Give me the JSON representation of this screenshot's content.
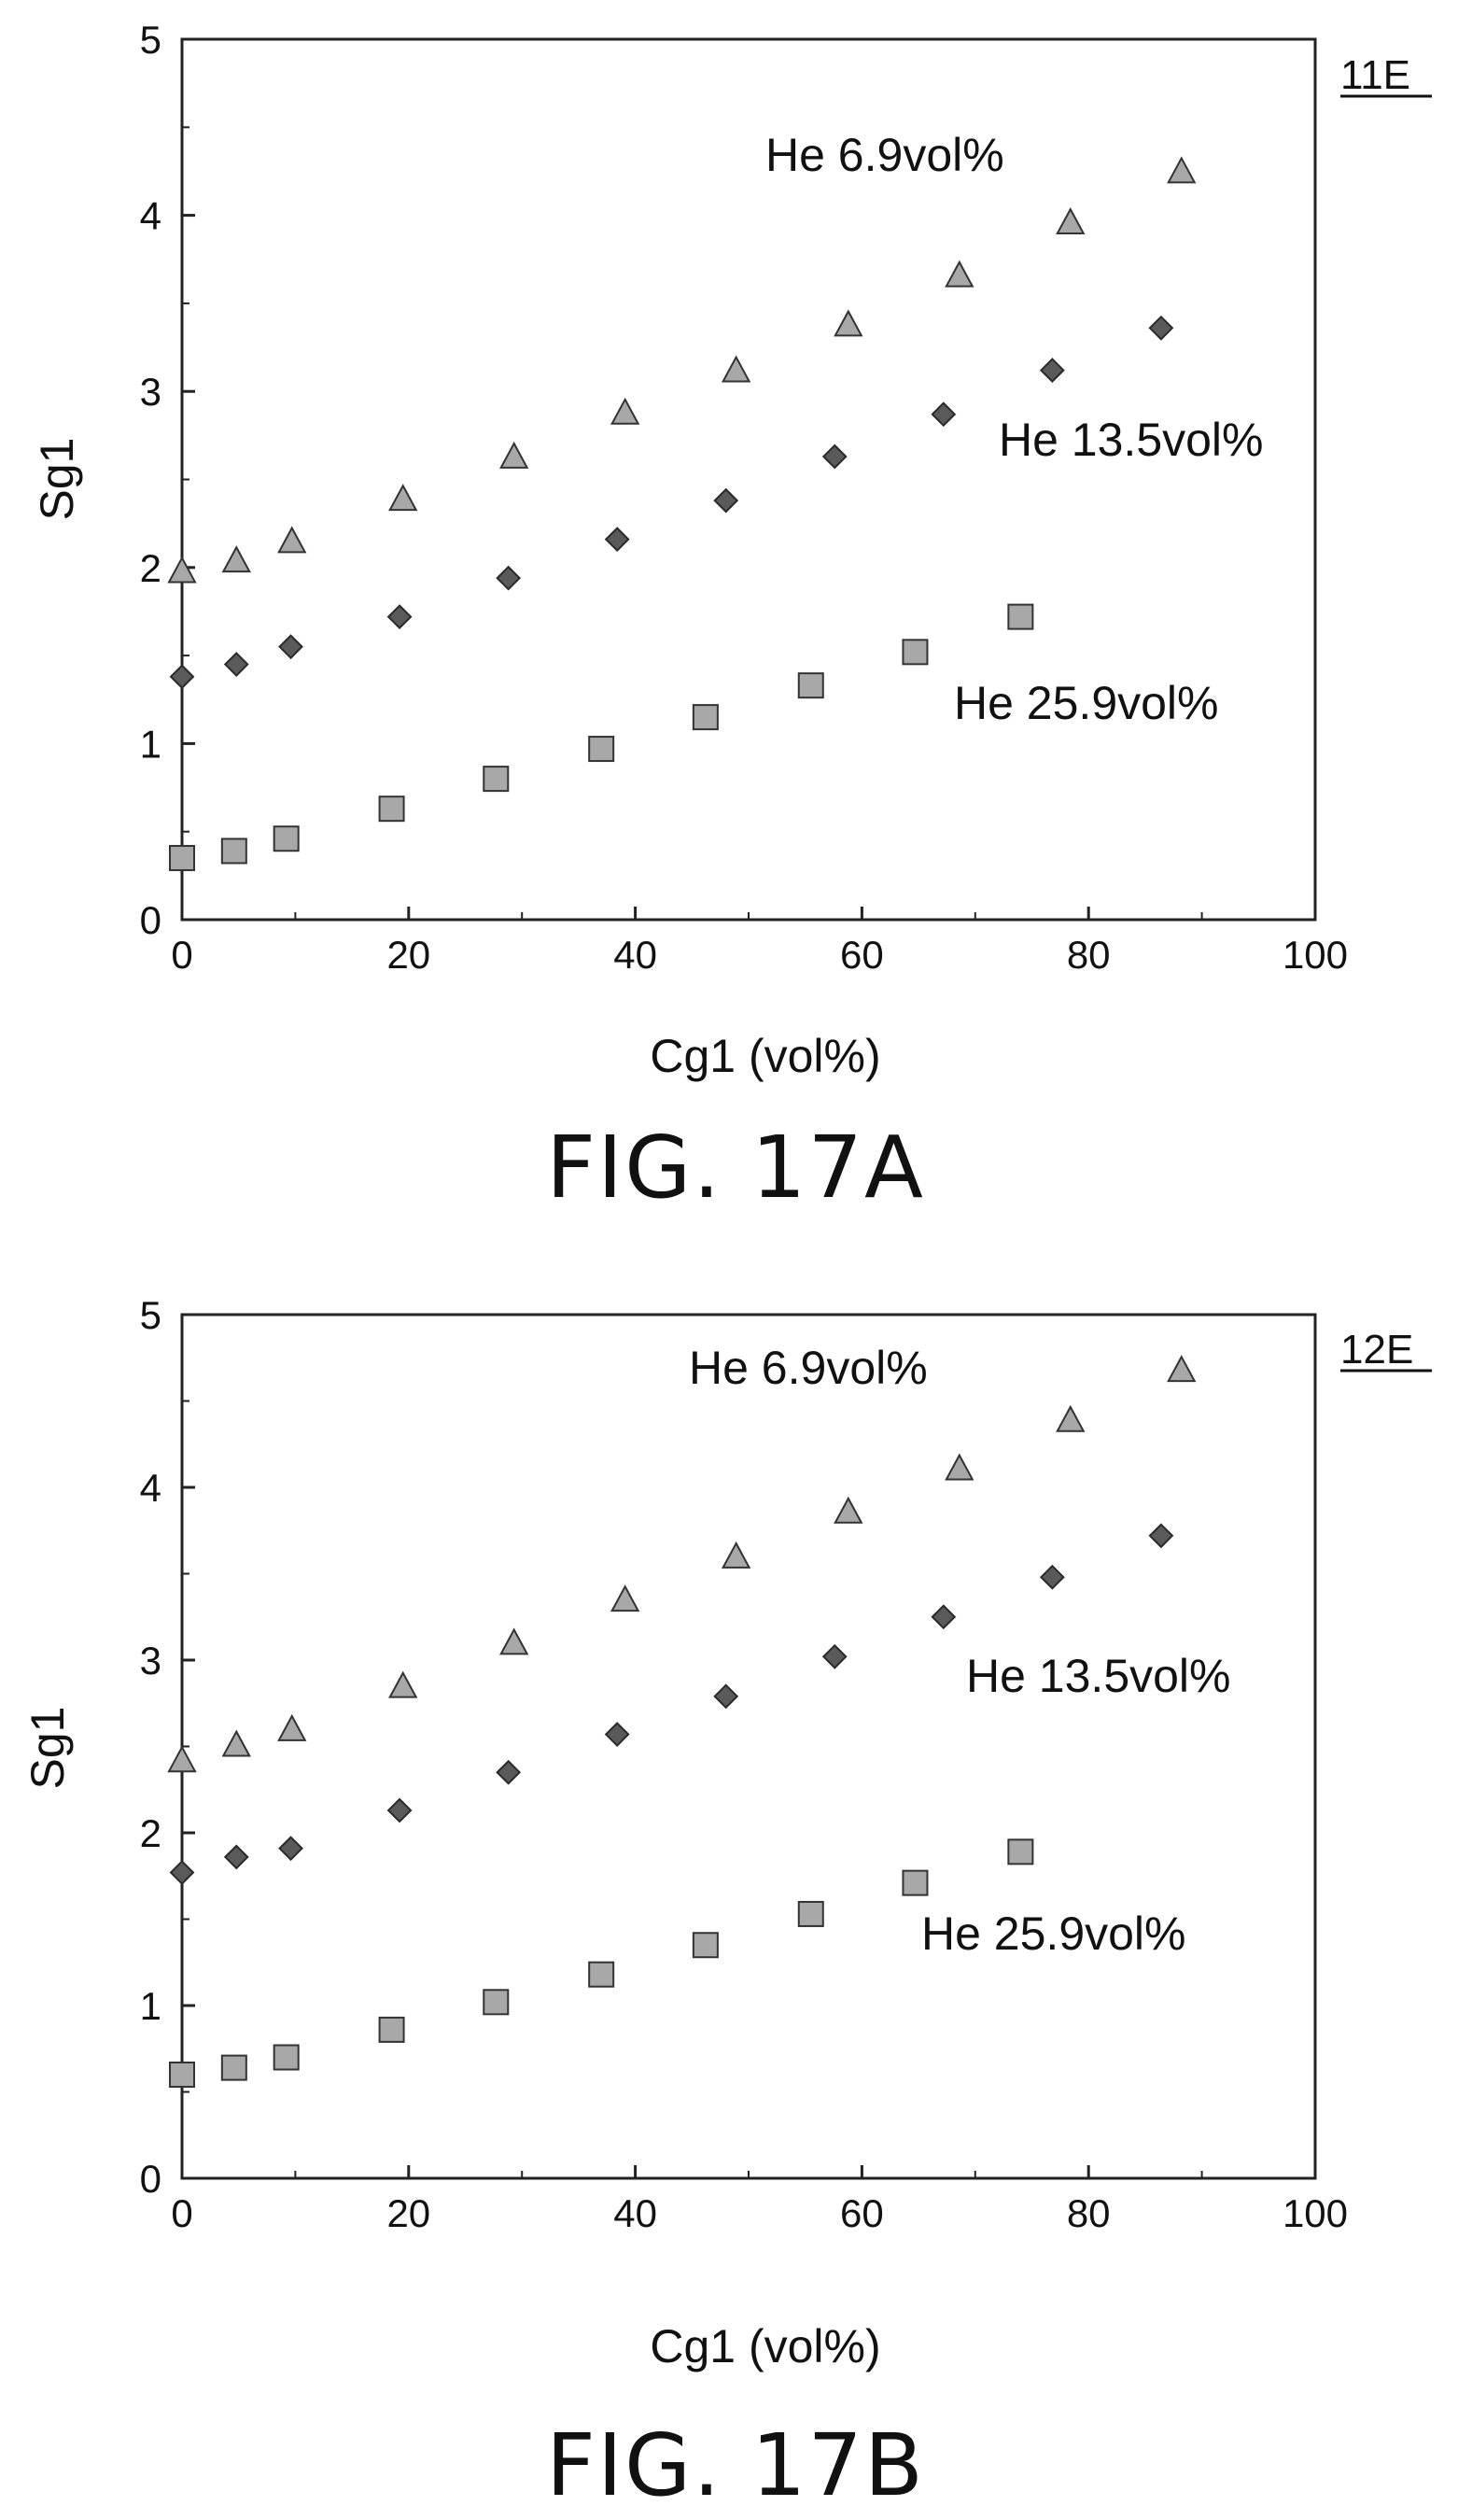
{
  "chart_data": [
    {
      "type": "scatter",
      "figure_label": "FIG. 17A",
      "ref_label": "11E",
      "xlabel": "Cg1 (vol%)",
      "ylabel": "Sg1",
      "xlim": [
        0,
        100
      ],
      "ylim": [
        0,
        5
      ],
      "xticks": [
        "0",
        "20",
        "40",
        "60",
        "80",
        "100"
      ],
      "yticks": [
        "0",
        "1",
        "2",
        "3",
        "4",
        "5"
      ],
      "grid": false,
      "series": [
        {
          "name": "He 6.9vol%",
          "marker": "triangle",
          "color": "#a8a8a8",
          "x": [
            0,
            4.8,
            9.7,
            19.5,
            29.3,
            39.1,
            48.9,
            58.8,
            68.6,
            78.4,
            88.2
          ],
          "y": [
            1.98,
            2.04,
            2.15,
            2.39,
            2.63,
            2.88,
            3.12,
            3.38,
            3.66,
            3.96,
            4.25
          ]
        },
        {
          "name": "He 13.5vol%",
          "marker": "diamond",
          "color": "#5a5a5a",
          "x": [
            0,
            4.8,
            9.6,
            19.2,
            28.8,
            38.4,
            48.0,
            57.6,
            67.2,
            76.8,
            86.4
          ],
          "y": [
            1.38,
            1.45,
            1.55,
            1.72,
            1.94,
            2.16,
            2.38,
            2.63,
            2.87,
            3.12,
            3.36
          ]
        },
        {
          "name": "He 25.9vol%",
          "marker": "square",
          "color": "#a8a8a8",
          "x": [
            0,
            4.6,
            9.2,
            18.5,
            27.7,
            37.0,
            46.2,
            55.5,
            64.7,
            74.0
          ],
          "y": [
            0.35,
            0.39,
            0.46,
            0.63,
            0.8,
            0.97,
            1.15,
            1.33,
            1.52,
            1.72
          ]
        }
      ]
    },
    {
      "type": "scatter",
      "figure_label": "FIG. 17B",
      "ref_label": "12E",
      "xlabel": "Cg1 (vol%)",
      "ylabel": "Sg1",
      "xlim": [
        0,
        100
      ],
      "ylim": [
        0,
        5
      ],
      "xticks": [
        "0",
        "20",
        "40",
        "60",
        "80",
        "100"
      ],
      "yticks": [
        "0",
        "1",
        "2",
        "3",
        "4",
        "5"
      ],
      "grid": false,
      "series": [
        {
          "name": "He 6.9vol%",
          "marker": "triangle",
          "color": "#a8a8a8",
          "x": [
            0,
            4.8,
            9.7,
            19.5,
            29.3,
            39.1,
            48.9,
            58.8,
            68.6,
            78.4,
            88.2
          ],
          "y": [
            2.42,
            2.51,
            2.6,
            2.85,
            3.1,
            3.35,
            3.6,
            3.86,
            4.11,
            4.39,
            4.68
          ]
        },
        {
          "name": "He 13.5vol%",
          "marker": "diamond",
          "color": "#5a5a5a",
          "x": [
            0,
            4.8,
            9.6,
            19.2,
            28.8,
            38.4,
            48.0,
            57.6,
            67.2,
            76.8,
            86.4
          ],
          "y": [
            1.77,
            1.86,
            1.91,
            2.13,
            2.35,
            2.57,
            2.79,
            3.02,
            3.25,
            3.48,
            3.72
          ]
        },
        {
          "name": "He 25.9vol%",
          "marker": "square",
          "color": "#a8a8a8",
          "x": [
            0,
            4.6,
            9.2,
            18.5,
            27.7,
            37.0,
            46.2,
            55.5,
            64.7,
            74.0
          ],
          "y": [
            0.6,
            0.64,
            0.7,
            0.86,
            1.02,
            1.18,
            1.35,
            1.53,
            1.71,
            1.89
          ]
        }
      ]
    }
  ]
}
